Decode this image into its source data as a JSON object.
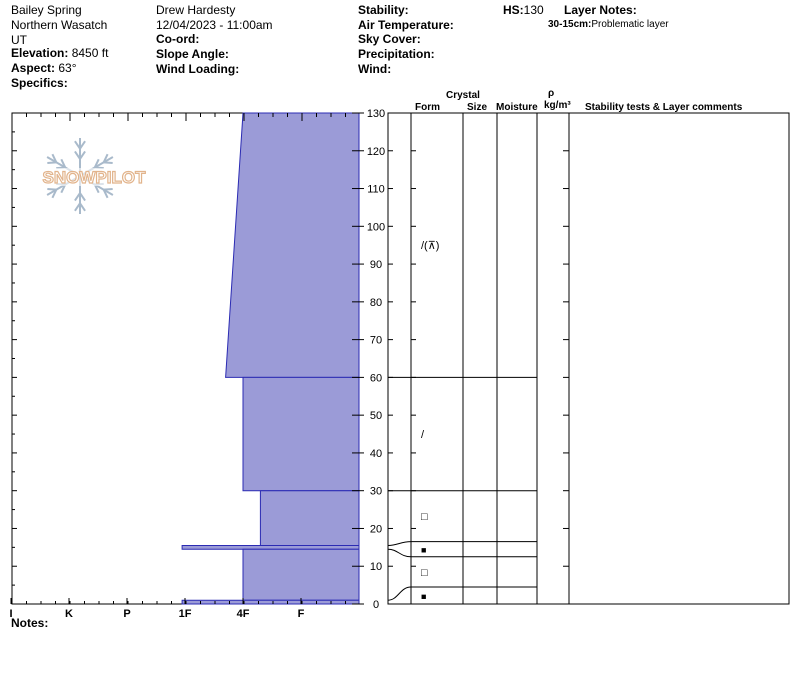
{
  "header": {
    "location": "Bailey Spring",
    "range": "Northern Wasatch",
    "state": "UT",
    "elevation_label": "Elevation:",
    "elevation": "8450 ft",
    "aspect_label": "Aspect:",
    "aspect": "63°",
    "specifics_label": "Specifics:",
    "observer": "Drew Hardesty",
    "datetime": "12/04/2023 - 11:00am",
    "coord_label": "Co-ord:",
    "slope_label": "Slope Angle:",
    "wind_loading_label": "Wind Loading:",
    "stability_label": "Stability:",
    "air_temp_label": "Air Temperature:",
    "sky_label": "Sky Cover:",
    "precip_label": "Precipitation:",
    "wind_label": "Wind:",
    "hs_label": "HS:",
    "hs": "130",
    "layer_notes_label": "Layer Notes:",
    "layer_note_range": "30-15cm:",
    "layer_note_text": "Problematic layer"
  },
  "columns": {
    "crystal": "Crystal",
    "form": "Form",
    "size": "Size",
    "moisture": "Moisture",
    "rho": "ρ",
    "density_unit": "kg/m³",
    "comments": "Stability tests & Layer comments"
  },
  "logo_text": "SNOWPILOT",
  "notes_label": "Notes:",
  "colors": {
    "profile_fill": "#9b9bd7",
    "profile_stroke": "#2b2bb3"
  },
  "chart_data": {
    "type": "bar",
    "orientation": "horizontal",
    "x_axis_labels": [
      "I",
      "K",
      "P",
      "1F",
      "4F",
      "F"
    ],
    "y_axis_ticks": [
      0,
      10,
      20,
      30,
      40,
      50,
      60,
      70,
      80,
      90,
      100,
      110,
      120,
      130
    ],
    "ylim": [
      0,
      130
    ],
    "hardness_scale": {
      "F": 1,
      "4F": 2,
      "1F": 3,
      "P": 4,
      "K": 5,
      "I": 6
    },
    "layers": [
      {
        "top": 130,
        "bottom": 60,
        "hardness_top": 2.0,
        "hardness_bottom": 2.3,
        "form": "/(⊼)"
      },
      {
        "top": 60,
        "bottom": 30,
        "hardness_top": 2.0,
        "hardness_bottom": 2.0,
        "form": "/"
      },
      {
        "top": 30,
        "bottom": 15.5,
        "hardness_top": 1.7,
        "hardness_bottom": 1.7,
        "form": "□"
      },
      {
        "top": 15.5,
        "bottom": 14.5,
        "hardness_top": 3.05,
        "hardness_bottom": 3.05,
        "form": "■"
      },
      {
        "top": 14.5,
        "bottom": 1,
        "hardness_top": 2.0,
        "hardness_bottom": 2.0,
        "form": "□"
      },
      {
        "top": 1,
        "bottom": 0,
        "hardness_top": 3.05,
        "hardness_bottom": 3.05,
        "form": "■"
      }
    ],
    "form_rows": [
      {
        "y1": 130,
        "y2": 60
      },
      {
        "y1": 60,
        "y2": 30
      },
      {
        "y1": 30,
        "y2": 16.5
      },
      {
        "y1": 16.5,
        "y2": 12.5
      },
      {
        "y1": 12.5,
        "y2": 4.5
      },
      {
        "y1": 4.5,
        "y2": 0
      }
    ]
  }
}
